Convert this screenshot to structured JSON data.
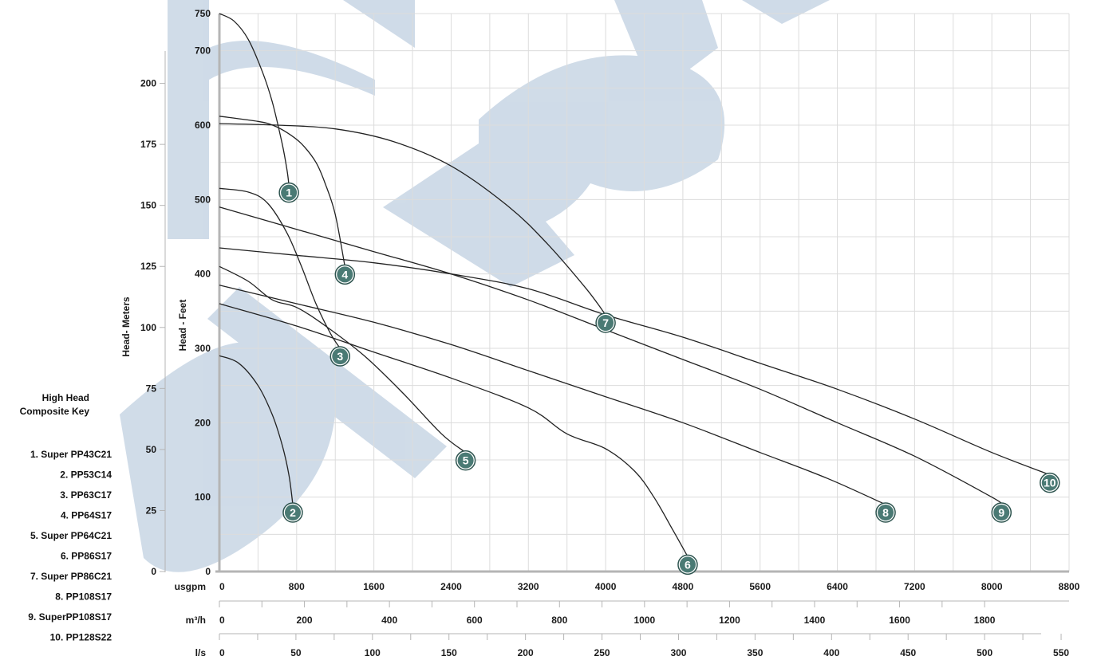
{
  "colors": {
    "grid": "#dcdcdc",
    "axis": "#b5b5b5",
    "curve": "#222222",
    "marker_fill": "#4a7a74",
    "marker_ring": "#2f5550",
    "watermark": "#a9bfd6"
  },
  "watermark_icon": "bekenn-logo-watermark",
  "key": {
    "title_lines": [
      "High Head",
      "Composite Key"
    ],
    "items": [
      "1. Super PP43C21",
      "2. PP53C14",
      "3. PP63C17",
      "4. PP64S17",
      "5. Super PP64C21",
      "6. PP86S17",
      "7. Super PP86C21",
      "8. PP108S17",
      "9. SuperPP108S17",
      "10. PP128S22"
    ]
  },
  "chart_data": {
    "type": "line",
    "title": "",
    "x_axes": [
      {
        "unit": "usgpm",
        "range": [
          0,
          8800
        ],
        "ticks": [
          "0",
          "800",
          "1600",
          "2400",
          "3200",
          "4000",
          "4800",
          "5600",
          "6400",
          "7200",
          "8000",
          "8800"
        ]
      },
      {
        "unit": "m³/h",
        "range": [
          0,
          2000
        ],
        "ticks": [
          "0",
          "200",
          "400",
          "600",
          "800",
          "1000",
          "1200",
          "1400",
          "1600",
          "1800"
        ]
      },
      {
        "unit": "l/s",
        "range": [
          0,
          550
        ],
        "ticks": [
          "0",
          "50",
          "100",
          "150",
          "200",
          "250",
          "300",
          "350",
          "400",
          "450",
          "500",
          "550"
        ]
      }
    ],
    "y_axes": [
      {
        "label": "Head - Feet",
        "range": [
          0,
          750
        ],
        "ticks": [
          "0",
          "100",
          "200",
          "300",
          "400",
          "500",
          "600",
          "700",
          "750"
        ]
      },
      {
        "label": "Head- Meters",
        "range": [
          0,
          200
        ],
        "ticks": [
          "0",
          "25",
          "50",
          "75",
          "100",
          "125",
          "150",
          "175",
          "200"
        ]
      }
    ],
    "series": [
      {
        "name": "1",
        "marker": "1",
        "x": [
          0,
          150,
          300,
          450,
          550,
          650,
          700,
          720
        ],
        "y": [
          750,
          740,
          715,
          670,
          630,
          575,
          540,
          520
        ]
      },
      {
        "name": "2",
        "marker": "2",
        "x": [
          0,
          200,
          400,
          550,
          650,
          720,
          760
        ],
        "y": [
          290,
          280,
          250,
          210,
          170,
          130,
          90
        ]
      },
      {
        "name": "3",
        "marker": "3",
        "x": [
          0,
          300,
          500,
          700,
          850,
          1000,
          1150,
          1250
        ],
        "y": [
          515,
          510,
          495,
          455,
          410,
          360,
          320,
          300
        ]
      },
      {
        "name": "4",
        "marker": "4",
        "x": [
          0,
          400,
          550,
          700,
          850,
          1000,
          1100,
          1200,
          1300
        ],
        "y": [
          612,
          605,
          600,
          590,
          575,
          550,
          520,
          480,
          410
        ]
      },
      {
        "name": "5",
        "marker": "5",
        "x": [
          0,
          300,
          550,
          800,
          1100,
          1500,
          1900,
          2300,
          2550
        ],
        "y": [
          410,
          390,
          365,
          355,
          330,
          290,
          240,
          185,
          160
        ]
      },
      {
        "name": "6",
        "marker": "6",
        "x": [
          0,
          800,
          1600,
          2400,
          3200,
          3600,
          4000,
          4300,
          4500,
          4700,
          4850
        ],
        "y": [
          360,
          330,
          295,
          260,
          220,
          185,
          165,
          135,
          100,
          55,
          20
        ]
      },
      {
        "name": "7",
        "marker": "7",
        "x": [
          0,
          600,
          1200,
          1800,
          2400,
          3000,
          3400,
          3800,
          4000
        ],
        "y": [
          602,
          600,
          595,
          578,
          545,
          490,
          440,
          380,
          345
        ]
      },
      {
        "name": "8",
        "marker": "8",
        "x": [
          0,
          800,
          1600,
          2400,
          3200,
          4000,
          4800,
          5600,
          6300,
          6900
        ],
        "y": [
          385,
          360,
          335,
          305,
          270,
          235,
          200,
          160,
          125,
          90
        ]
      },
      {
        "name": "9",
        "marker": "9",
        "x": [
          0,
          800,
          1600,
          2400,
          3200,
          4000,
          4800,
          5600,
          6400,
          7200,
          8000,
          8100
        ],
        "y": [
          490,
          460,
          430,
          400,
          365,
          325,
          285,
          245,
          200,
          155,
          100,
          90
        ]
      },
      {
        "name": "10",
        "marker": "10",
        "x": [
          0,
          800,
          1600,
          2400,
          3200,
          4000,
          4800,
          5600,
          6400,
          7200,
          8000,
          8600
        ],
        "y": [
          435,
          425,
          415,
          400,
          380,
          345,
          315,
          280,
          245,
          205,
          160,
          130
        ]
      }
    ]
  }
}
